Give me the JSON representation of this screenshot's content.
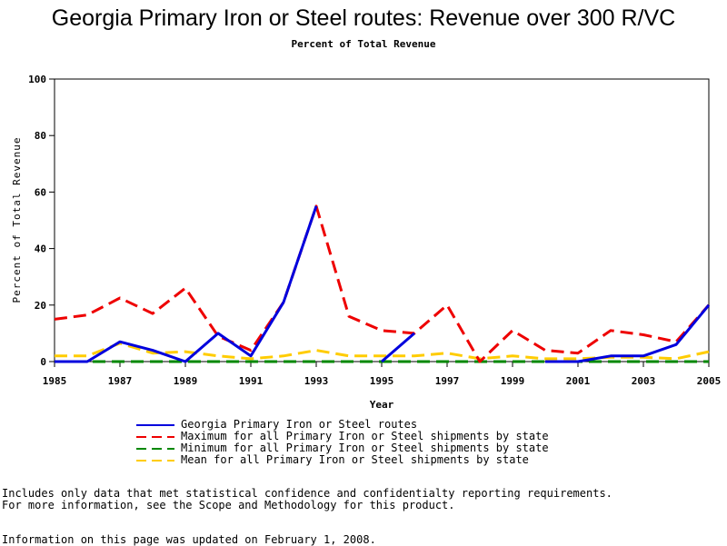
{
  "chart_data": {
    "type": "line",
    "title": "Georgia Primary Iron or Steel routes: Revenue over 300 R/VC",
    "subtitle": "Percent of Total Revenue",
    "xlabel": "Year",
    "ylabel": "Percent of Total Revenue",
    "xlim": [
      1985,
      2005
    ],
    "ylim": [
      0,
      100
    ],
    "x_ticks": [
      "1985",
      "1987",
      "1989",
      "1991",
      "1993",
      "1995",
      "1997",
      "1999",
      "2001",
      "2003",
      "2005"
    ],
    "y_ticks": [
      "0",
      "20",
      "40",
      "60",
      "80",
      "100"
    ],
    "x": [
      1985,
      1986,
      1987,
      1988,
      1989,
      1990,
      1991,
      1992,
      1993,
      1994,
      1995,
      1996,
      1997,
      1998,
      1999,
      2000,
      2001,
      2002,
      2003,
      2004,
      2005
    ],
    "series": [
      {
        "name": "Georgia Primary Iron or Steel routes",
        "color": "#0000dd",
        "style": "solid",
        "values": [
          0,
          0,
          7,
          4,
          0,
          10,
          2,
          21,
          55,
          null,
          0,
          10,
          null,
          null,
          null,
          0,
          0,
          2,
          2,
          6,
          20
        ]
      },
      {
        "name": "Maximum for all Primary Iron or Steel shipments by state",
        "color": "#ee0000",
        "style": "dashed",
        "values": [
          15,
          16.5,
          22.5,
          17,
          26,
          9,
          4,
          21,
          55,
          16,
          11,
          10,
          20,
          0,
          11,
          4,
          3,
          11,
          9.5,
          7,
          20
        ]
      },
      {
        "name": "Minimum for all Primary Iron or Steel shipments by state",
        "color": "#008800",
        "style": "dashed",
        "values": [
          0,
          0,
          0,
          0,
          0,
          0,
          0,
          0,
          0,
          0,
          0,
          0,
          0,
          0,
          0,
          0,
          0,
          0,
          0,
          0,
          0
        ]
      },
      {
        "name": "Mean for all Primary Iron or Steel shipments by state",
        "color": "#ffcc00",
        "style": "dashed",
        "values": [
          2,
          2,
          6.5,
          3,
          3.5,
          2,
          1,
          2,
          4,
          2,
          2,
          2,
          3,
          1,
          2,
          1,
          1,
          1.5,
          1.5,
          1,
          3.5
        ]
      }
    ],
    "grid": false,
    "legend_position": "bottom"
  },
  "notes": {
    "line1": "Includes only data that met statistical confidence and confidentialty reporting requirements.",
    "line2": "For more information, see the Scope and Methodology for this product.",
    "updated": "Information on this page was updated on February 1, 2008."
  }
}
